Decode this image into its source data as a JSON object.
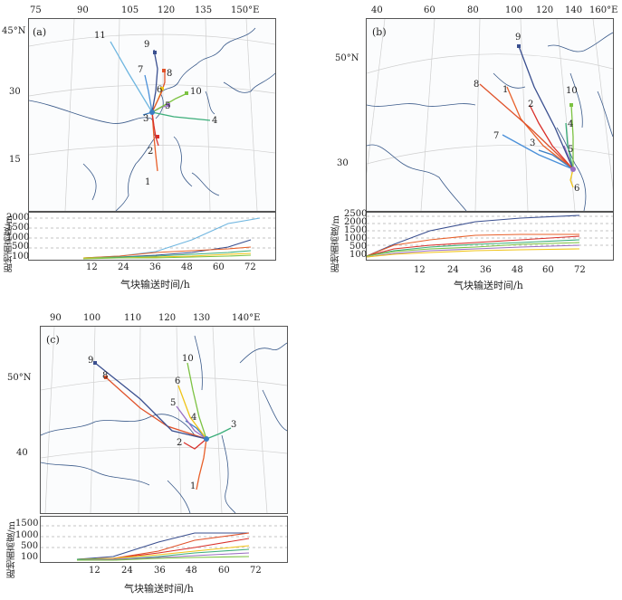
{
  "panels": [
    {
      "id": "a",
      "label": "(a)",
      "lon_ticks": [
        "75",
        "90",
        "105",
        "120",
        "135",
        "150°E"
      ],
      "lat_ticks": [
        "45°N",
        "30",
        "15"
      ],
      "traj_labels": [
        "1",
        "2",
        "3",
        "4",
        "5",
        "6",
        "7",
        "8",
        "9",
        "10",
        "11"
      ],
      "height_ticks": [
        "2000",
        "1500",
        "1000",
        "500",
        "100"
      ],
      "time_ticks": [
        "12",
        "24",
        "36",
        "48",
        "60",
        "72"
      ],
      "ylabel": "距地面高度/m",
      "xlabel": "气块输送时间/h"
    },
    {
      "id": "b",
      "label": "(b)",
      "lon_ticks": [
        "40",
        "60",
        "80",
        "100",
        "120",
        "140",
        "160°E"
      ],
      "lat_ticks": [
        "50°N",
        "30"
      ],
      "traj_labels": [
        "1",
        "2",
        "3",
        "4",
        "5",
        "6",
        "7",
        "8",
        "9",
        "10"
      ],
      "height_ticks": [
        "2500",
        "2000",
        "1500",
        "1000",
        "500",
        "100"
      ],
      "time_ticks": [
        "12",
        "24",
        "36",
        "48",
        "60",
        "72"
      ],
      "ylabel": "距地面高度/m",
      "xlabel": "气块输送时间/h"
    },
    {
      "id": "c",
      "label": "(c)",
      "lon_ticks": [
        "90",
        "100",
        "110",
        "120",
        "130",
        "140°E"
      ],
      "lat_ticks": [
        "50°N",
        "40"
      ],
      "traj_labels": [
        "1",
        "2",
        "3",
        "4",
        "5",
        "6",
        "9",
        "8",
        "10"
      ],
      "height_ticks": [
        "1500",
        "1000",
        "500",
        "100"
      ],
      "time_ticks": [
        "12",
        "24",
        "36",
        "48",
        "60",
        "72"
      ],
      "ylabel": "距地面高度/m",
      "xlabel": "气块输送时间/h"
    }
  ],
  "colors": {
    "1": "#e8602a",
    "2": "#d9302a",
    "3": "#3b7fc4",
    "4": "#3cae7a",
    "5": "#9a6fc2",
    "6": "#f0c419",
    "7": "#4a90d9",
    "8": "#e0522a",
    "9": "#3a4f8f",
    "10": "#7cc242",
    "11": "#6fb6e0",
    "coast": "#3a5a8a",
    "grid": "#c8c8c8"
  }
}
